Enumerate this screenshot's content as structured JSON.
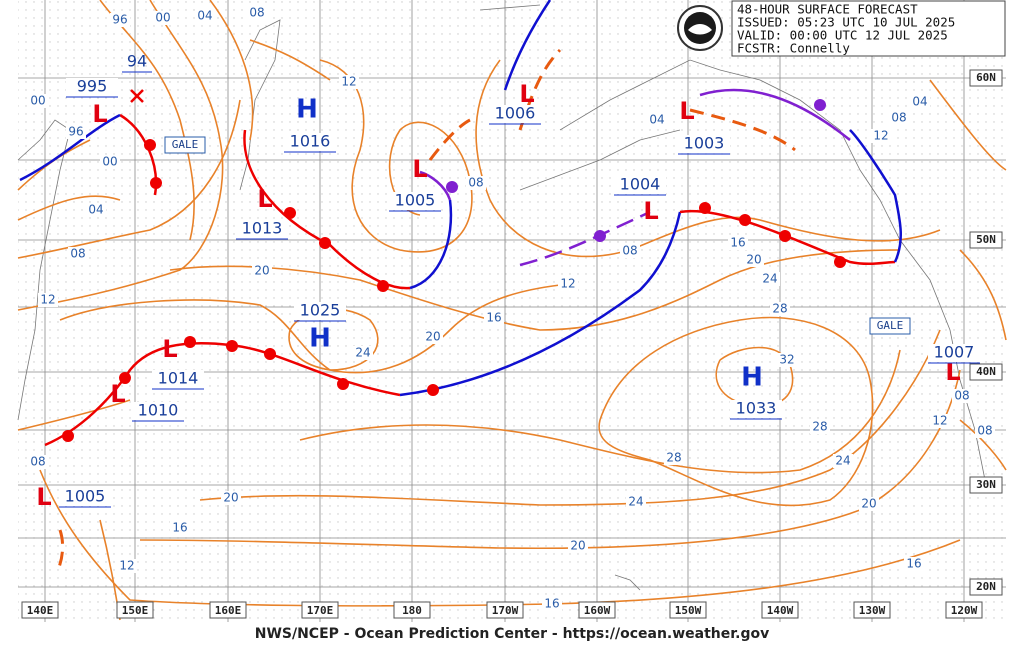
{
  "header": {
    "lines": [
      "48-HOUR SURFACE FORECAST",
      "ISSUED: 05:23 UTC 10 JUL 2025",
      "VALID:  00:00 UTC 12 JUL 2025",
      "FCSTR:  Connelly"
    ]
  },
  "longitude_labels": [
    "140E",
    "150E",
    "160E",
    "170E",
    "180",
    "170W",
    "160W",
    "150W",
    "140W",
    "130W",
    "120W"
  ],
  "latitude_labels": [
    "60N",
    "50N",
    "40N",
    "30N",
    "20N"
  ],
  "pressure_centers": [
    {
      "symbol": "L",
      "pressure": "995"
    },
    {
      "symbol": "L",
      "pressure": "1006"
    },
    {
      "symbol": "L",
      "pressure": "1003"
    },
    {
      "symbol": "H",
      "pressure": "1016"
    },
    {
      "symbol": "L",
      "pressure": "1005"
    },
    {
      "symbol": "L",
      "pressure": "1013"
    },
    {
      "symbol": "L",
      "pressure": "1004"
    },
    {
      "symbol": "H",
      "pressure": "1025"
    },
    {
      "symbol": "L",
      "pressure": "1014"
    },
    {
      "symbol": "L",
      "pressure": "1010"
    },
    {
      "symbol": "H",
      "pressure": "1033"
    },
    {
      "symbol": "L",
      "pressure": "1007"
    },
    {
      "symbol": "L",
      "pressure": "1005"
    }
  ],
  "previous_position_label": "94",
  "warnings": [
    "GALE",
    "GALE"
  ],
  "isobar_labels": [
    "96",
    "00",
    "04",
    "08",
    "00",
    "96",
    "00",
    "04",
    "08",
    "12",
    "12",
    "08",
    "04",
    "04",
    "08",
    "12",
    "16",
    "20",
    "24",
    "28",
    "32",
    "28",
    "24",
    "20",
    "16",
    "12",
    "08",
    "08",
    "08",
    "12",
    "16",
    "20",
    "20",
    "24",
    "28",
    "24",
    "20",
    "20",
    "16",
    "16",
    "12",
    "08"
  ],
  "footer": "NWS/NCEP - Ocean Prediction Center - https://ocean.weather.gov"
}
